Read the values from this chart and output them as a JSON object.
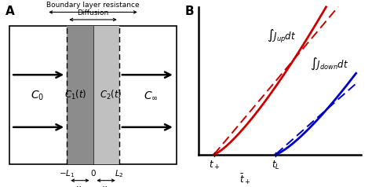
{
  "fig_width": 4.74,
  "fig_height": 2.38,
  "dpi": 100,
  "panel_A": {
    "boundary_label": "Boundary layer resistance",
    "diffusion_label": "Diffusion",
    "C0_label": "C_0",
    "Cinf_label": "C_{\\infty}",
    "C1_label": "C_1(t)",
    "C2_label": "C_2(t)",
    "layer1_color": "#8c8c8c",
    "layer2_color": "#c0c0c0"
  },
  "panel_B": {
    "red_color": "#cc0000",
    "blue_color": "#0000cc"
  }
}
